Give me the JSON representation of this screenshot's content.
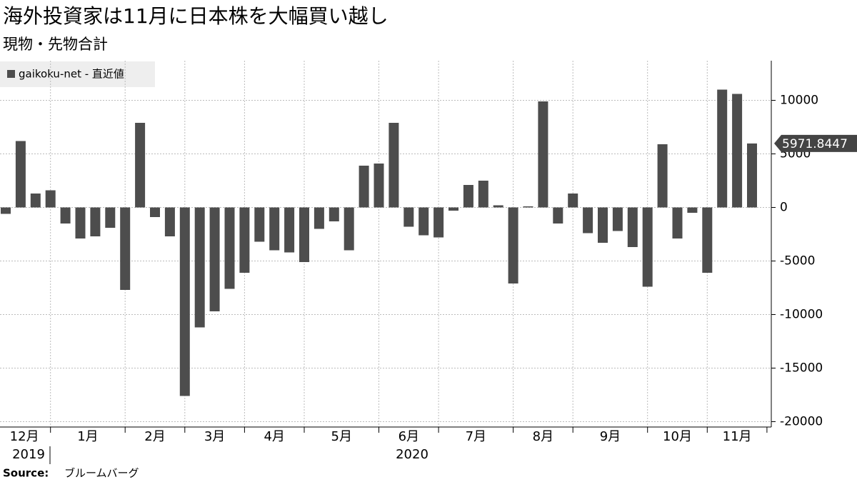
{
  "chart_data": {
    "type": "bar",
    "title": "海外投資家は11月に日本株を大幅買い越し",
    "subtitle": "現物・先物合計",
    "source_label": "Source:",
    "source": "ブルームバーグ",
    "months": [
      "12月",
      "1月",
      "2月",
      "3月",
      "4月",
      "5月",
      "6月",
      "7月",
      "8月",
      "9月",
      "10月",
      "11月"
    ],
    "years": [
      "2019",
      "2020"
    ],
    "series": [
      {
        "name": "gaikoku-net - 直近値",
        "color": "#4d4d4d",
        "values": [
          -600,
          6200,
          1300,
          1600,
          -1500,
          -2900,
          -2700,
          -1900,
          -7700,
          7900,
          -900,
          -2700,
          -17600,
          -11200,
          -9700,
          -7600,
          -6100,
          -3200,
          -4000,
          -4200,
          -5100,
          -2000,
          -1300,
          -4000,
          3900,
          4100,
          7900,
          -1800,
          -2600,
          -2800,
          -300,
          2100,
          2500,
          200,
          -7100,
          100,
          9900,
          -1500,
          1300,
          -2400,
          -3300,
          -2200,
          -3700,
          -7400,
          5900,
          -2900,
          -500,
          -6100,
          11000,
          10600,
          5971.8447
        ],
        "last_value_label": "5971.8447"
      }
    ],
    "ylim": [
      -20500,
      13700
    ],
    "yticks": [
      -20000,
      -15000,
      -10000,
      -5000,
      0,
      5000,
      10000
    ],
    "grid": true
  }
}
